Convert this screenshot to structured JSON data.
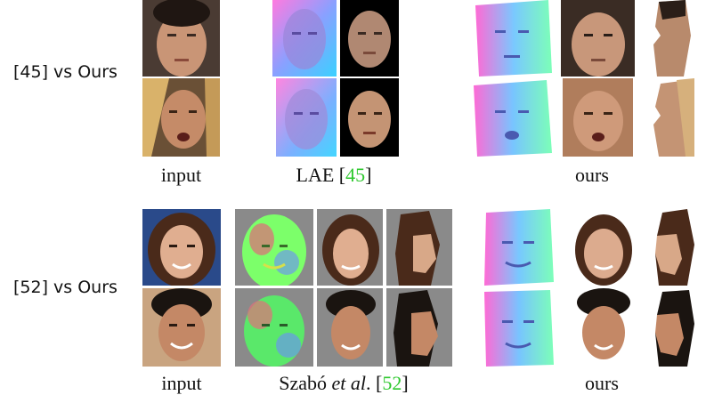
{
  "figure": {
    "rows": [
      {
        "label": "[45] vs Ours",
        "captions": {
          "input": "input",
          "method_name": "LAE [",
          "method_cite": "45",
          "method_close": "]",
          "ours": "ours"
        }
      },
      {
        "label": "[52] vs Ours",
        "captions": {
          "input": "input",
          "method_name_pre": "Szabó ",
          "method_name_em": "et al",
          "method_name_post": ". [",
          "method_cite": "52",
          "method_close": "]",
          "ours": "ours"
        }
      }
    ],
    "colors": {
      "citation": "#2ec82e",
      "normal_map_a": "#ff6ad5",
      "normal_map_b": "#3ad1ff",
      "normal_map_c": "#7cff8a",
      "skin": "#d8a888",
      "background_dark": "#2b2b2b",
      "background_gray": "#8a8a8a"
    }
  }
}
